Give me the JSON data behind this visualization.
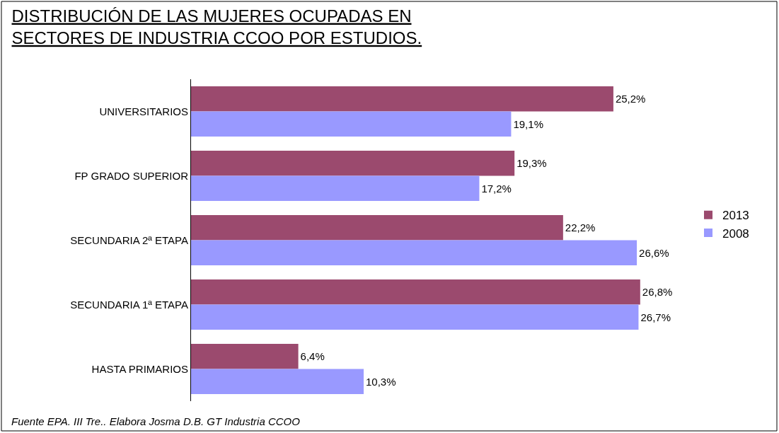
{
  "chart_data": {
    "type": "bar",
    "orientation": "horizontal",
    "title": "DISTRIBUCIÓN DE LAS MUJERES OCUPADAS EN\nSECTORES DE INDUSTRIA CCOO POR ESTUDIOS.",
    "categories": [
      "UNIVERSITARIOS",
      "FP GRADO SUPERIOR",
      "SECUNDARIA 2ª ETAPA",
      "SECUNDARIA 1ª ETAPA",
      "HASTA PRIMARIOS"
    ],
    "series": [
      {
        "name": "2013",
        "color": "#9b4a6e",
        "values": [
          25.2,
          19.3,
          22.2,
          26.8,
          6.4
        ],
        "value_labels": [
          "25,2%",
          "19,3%",
          "22,2%",
          "26,8%",
          "6,4%"
        ]
      },
      {
        "name": "2008",
        "color": "#9999ff",
        "values": [
          19.1,
          17.2,
          26.6,
          26.7,
          10.3
        ],
        "value_labels": [
          "19,1%",
          "17,2%",
          "26,6%",
          "26,7%",
          "10,3%"
        ]
      }
    ],
    "legend": "right",
    "annotations": [
      "Fuente EPA. III Tre.. Elabora Josma D.B. GT Industria CCOO"
    ]
  }
}
